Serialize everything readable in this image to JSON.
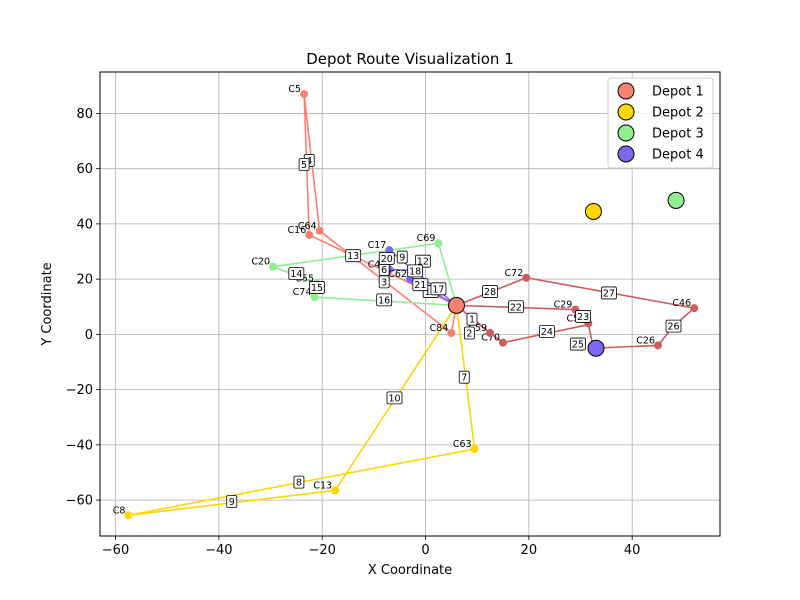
{
  "chart_data": {
    "type": "scatter",
    "title": "Depot Route Visualization 1",
    "xlabel": "X Coordinate",
    "ylabel": "Y Coordinate",
    "xlim": [
      -63,
      57
    ],
    "ylim": [
      -73,
      95
    ],
    "xticks": [
      -60,
      -40,
      -20,
      0,
      20,
      40
    ],
    "yticks": [
      -60,
      -40,
      -20,
      0,
      20,
      40,
      60,
      80
    ],
    "grid": true,
    "legend_position": "top-right",
    "depots": [
      {
        "name": "Depot 1",
        "x": 6,
        "y": 10.5,
        "color": "#fa8072"
      },
      {
        "name": "Depot 2",
        "x": 32.5,
        "y": 44.5,
        "color": "#ffd700"
      },
      {
        "name": "Depot 3",
        "x": 48.5,
        "y": 48.5,
        "color": "#90ee90"
      },
      {
        "name": "Depot 4",
        "x": 33,
        "y": -5,
        "color": "#7b68ee"
      }
    ],
    "routes": [
      {
        "color": "#fa8072",
        "points": [
          [
            6,
            10.5
          ],
          [
            5,
            0.5
          ],
          [
            -20.5,
            37.5
          ],
          [
            -23.5,
            87
          ],
          [
            -22.5,
            36
          ],
          [
            6,
            10.5
          ]
        ]
      },
      {
        "color": "#ffd700",
        "points": [
          [
            6,
            10.5
          ],
          [
            9.5,
            -41.5
          ],
          [
            -57.5,
            -65.5
          ],
          [
            -17.5,
            -56.5
          ],
          [
            6,
            10.5
          ]
        ]
      },
      {
        "color": "#90ee90",
        "points": [
          [
            6,
            10.5
          ],
          [
            -21.5,
            13.5
          ],
          [
            -21,
            18.5
          ],
          [
            -29.5,
            24.5
          ],
          [
            2.5,
            33
          ],
          [
            6,
            10.5
          ]
        ]
      },
      {
        "color": "#7b68ee",
        "points": [
          [
            6,
            10.5
          ],
          [
            -7,
            30.5
          ],
          [
            -7,
            23.5
          ],
          [
            -1,
            23
          ],
          [
            -3,
            20
          ],
          [
            6,
            10.5
          ]
        ]
      },
      {
        "color": "#cd5c5c",
        "points": [
          [
            6,
            10.5
          ],
          [
            19.5,
            20.5
          ],
          [
            52,
            9.5
          ],
          [
            48,
            3
          ],
          [
            45,
            -4
          ],
          [
            32.5,
            -5
          ],
          [
            31.5,
            4
          ],
          [
            29,
            9
          ],
          [
            6,
            10.5
          ]
        ]
      },
      {
        "color": "#cd5c5c",
        "points": [
          [
            6,
            10.5
          ],
          [
            12.5,
            0.5
          ],
          [
            15,
            -3
          ],
          [
            31.5,
            3.5
          ]
        ]
      }
    ],
    "customers": [
      {
        "label": "C5",
        "x": -23.5,
        "y": 87,
        "color": "#fa8072"
      },
      {
        "label": "C64",
        "x": -20.5,
        "y": 37.5,
        "color": "#fa8072"
      },
      {
        "label": "C16",
        "x": -22.5,
        "y": 36,
        "color": "#fa8072"
      },
      {
        "label": "C84",
        "x": 5,
        "y": 0.5,
        "color": "#fa8072"
      },
      {
        "label": "C63",
        "x": 9.5,
        "y": -41.5,
        "color": "#ffd700"
      },
      {
        "label": "C8",
        "x": -57.5,
        "y": -65.5,
        "color": "#ffd700"
      },
      {
        "label": "C13",
        "x": -17.5,
        "y": -56.5,
        "color": "#ffd700"
      },
      {
        "label": "C20",
        "x": -29.5,
        "y": 24.5,
        "color": "#90ee90"
      },
      {
        "label": "C55",
        "x": -21,
        "y": 18.5,
        "color": "#90ee90"
      },
      {
        "label": "C74",
        "x": -21.5,
        "y": 13.5,
        "color": "#90ee90"
      },
      {
        "label": "C69",
        "x": 2.5,
        "y": 33,
        "color": "#90ee90"
      },
      {
        "label": "C17",
        "x": -7,
        "y": 30.5,
        "color": "#7b68ee"
      },
      {
        "label": "C44",
        "x": -7,
        "y": 23.5,
        "color": "#7b68ee"
      },
      {
        "label": "C62",
        "x": -3,
        "y": 20,
        "color": "#7b68ee"
      },
      {
        "label": "C72",
        "x": 19.5,
        "y": 20.5,
        "color": "#cd5c5c"
      },
      {
        "label": "C46",
        "x": 52,
        "y": 9.5,
        "color": "#cd5c5c"
      },
      {
        "label": "C29",
        "x": 29,
        "y": 9,
        "color": "#cd5c5c"
      },
      {
        "label": "C54",
        "x": 31.5,
        "y": 4,
        "color": "#cd5c5c"
      },
      {
        "label": "C26",
        "x": 45,
        "y": -4,
        "color": "#cd5c5c"
      },
      {
        "label": "C70",
        "x": 15,
        "y": -3,
        "color": "#cd5c5c"
      },
      {
        "label": "C59",
        "x": 12.5,
        "y": 0.5,
        "color": "#cd5c5c"
      }
    ],
    "edge_labels": [
      {
        "text": "1",
        "x": 9,
        "y": 5.5
      },
      {
        "text": "2",
        "x": 8.5,
        "y": 0.5
      },
      {
        "text": "3",
        "x": -8,
        "y": 19
      },
      {
        "text": "4",
        "x": -22.5,
        "y": 63
      },
      {
        "text": "5",
        "x": -23.5,
        "y": 61.5
      },
      {
        "text": "6",
        "x": -8,
        "y": 23.5
      },
      {
        "text": "7",
        "x": 7.5,
        "y": -15.5
      },
      {
        "text": "8",
        "x": -24.5,
        "y": -53.5
      },
      {
        "text": "9",
        "x": -37.5,
        "y": -60.5
      },
      {
        "text": "9",
        "x": -4.5,
        "y": 28
      },
      {
        "text": "10",
        "x": -6,
        "y": -23
      },
      {
        "text": "11",
        "x": 1,
        "y": 15.5
      },
      {
        "text": "12",
        "x": -0.5,
        "y": 26.5
      },
      {
        "text": "13",
        "x": -14,
        "y": 28.5
      },
      {
        "text": "14",
        "x": -25,
        "y": 22
      },
      {
        "text": "15",
        "x": -21,
        "y": 17
      },
      {
        "text": "16",
        "x": -8,
        "y": 12.5
      },
      {
        "text": "17",
        "x": 2.5,
        "y": 16.5
      },
      {
        "text": "18",
        "x": -2,
        "y": 23
      },
      {
        "text": "20",
        "x": -7.5,
        "y": 27.5
      },
      {
        "text": "21",
        "x": -1,
        "y": 18
      },
      {
        "text": "22",
        "x": 17.5,
        "y": 10
      },
      {
        "text": "23",
        "x": 30.5,
        "y": 6.5
      },
      {
        "text": "24",
        "x": 23.5,
        "y": 1
      },
      {
        "text": "25",
        "x": 29.5,
        "y": -3.5
      },
      {
        "text": "26",
        "x": 48,
        "y": 3
      },
      {
        "text": "27",
        "x": 35.5,
        "y": 15
      },
      {
        "text": "28",
        "x": 12.5,
        "y": 15.5
      }
    ]
  }
}
